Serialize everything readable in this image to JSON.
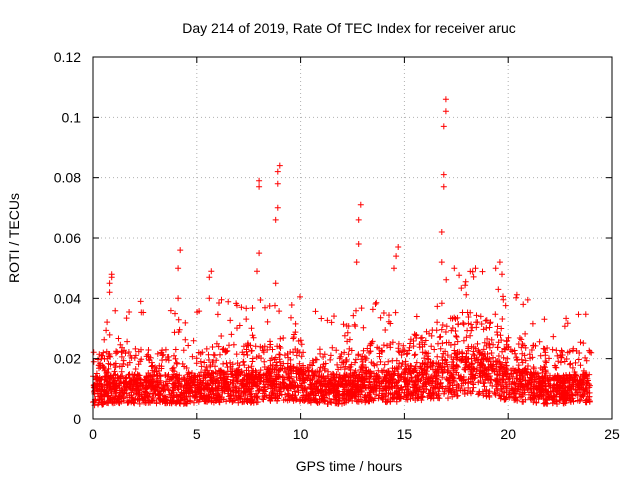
{
  "chart_data": {
    "type": "scatter",
    "title": "Day 214 of 2019, Rate Of TEC Index for receiver aruc",
    "xlabel": "GPS time / hours",
    "ylabel": "ROTI / TECUs",
    "xlim": [
      0,
      25
    ],
    "ylim": [
      0,
      0.12
    ],
    "grid": true,
    "marker": "+",
    "x_ticks": [
      0,
      5,
      10,
      15,
      20,
      25
    ],
    "x_tick_labels": [
      "0",
      "5",
      "10",
      "15",
      "20",
      "25"
    ],
    "y_ticks": [
      0,
      0.02,
      0.04,
      0.06,
      0.08,
      0.1,
      0.12
    ],
    "y_tick_labels": [
      "0",
      "0.02",
      "0.04",
      "0.06",
      "0.08",
      "0.1",
      "0.12"
    ],
    "colors": {
      "points": "#ff0000",
      "grid": "#b0b0b0",
      "axes": "#000000"
    },
    "series": [
      {
        "name": "ROTI",
        "sampled": true,
        "x_range_observed": [
          0,
          24
        ],
        "typical_band": [
          0.003,
          0.03
        ],
        "baseline_level_by_hour": [
          0.01,
          0.011,
          0.011,
          0.011,
          0.011,
          0.011,
          0.012,
          0.012,
          0.012,
          0.013,
          0.013,
          0.011,
          0.011,
          0.012,
          0.012,
          0.013,
          0.014,
          0.015,
          0.018,
          0.016,
          0.013,
          0.012,
          0.011,
          0.011,
          0.011
        ],
        "spikes": [
          {
            "x": [
              0.8,
              0.8,
              0.9,
              0.9
            ],
            "y": [
              0.042,
              0.045,
              0.047,
              0.048
            ]
          },
          {
            "x": [
              2.3
            ],
            "y": [
              0.039
            ]
          },
          {
            "x": [
              4.1,
              4.1,
              4.2
            ],
            "y": [
              0.04,
              0.05,
              0.056
            ]
          },
          {
            "x": [
              5.6,
              5.6,
              5.7
            ],
            "y": [
              0.04,
              0.047,
              0.049
            ]
          },
          {
            "x": [
              7.9,
              8.0,
              8.0,
              8.0
            ],
            "y": [
              0.049,
              0.055,
              0.077,
              0.079
            ]
          },
          {
            "x": [
              8.8,
              8.8,
              8.9,
              8.9,
              8.9,
              9.0
            ],
            "y": [
              0.045,
              0.066,
              0.07,
              0.078,
              0.082,
              0.084
            ]
          },
          {
            "x": [
              12.7,
              12.8,
              12.8,
              12.9
            ],
            "y": [
              0.052,
              0.058,
              0.066,
              0.071
            ]
          },
          {
            "x": [
              14.5,
              14.6,
              14.7
            ],
            "y": [
              0.05,
              0.054,
              0.057
            ]
          },
          {
            "x": [
              16.8,
              16.8,
              16.9,
              16.9,
              16.9,
              17.0,
              17.0
            ],
            "y": [
              0.052,
              0.062,
              0.077,
              0.081,
              0.097,
              0.102,
              0.106
            ]
          },
          {
            "x": [
              19.4,
              19.6,
              19.7
            ],
            "y": [
              0.05,
              0.052,
              0.048
            ]
          }
        ]
      }
    ]
  }
}
